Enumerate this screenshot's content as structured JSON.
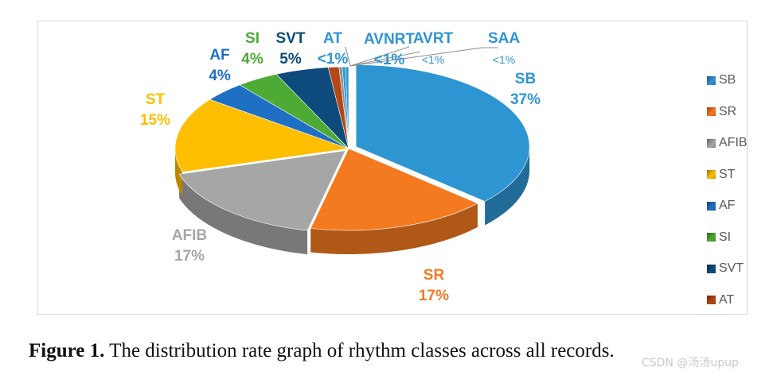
{
  "chart_data": {
    "type": "pie",
    "style": "3d-exploded",
    "categories": [
      "SB",
      "SR",
      "AFIB",
      "ST",
      "AF",
      "SI",
      "SVT",
      "AT",
      "AVNRT",
      "AVRT",
      "SAA"
    ],
    "values": [
      37,
      17,
      17,
      15,
      4,
      4,
      5,
      1,
      0.3,
      0.3,
      0.3
    ],
    "colors": [
      "#2E95D3",
      "#F47A20",
      "#A6A6A6",
      "#FFBE00",
      "#1F6FC4",
      "#4DAA35",
      "#0C4B7B",
      "#B44714",
      "#8E8E8E",
      "#2E95D3",
      "#2E95D3"
    ],
    "slices": [
      {
        "name": "SB",
        "pct_label": "37%"
      },
      {
        "name": "SR",
        "pct_label": "17%"
      },
      {
        "name": "AFIB",
        "pct_label": "17%"
      },
      {
        "name": "ST",
        "pct_label": "15%"
      },
      {
        "name": "AF",
        "pct_label": "4%"
      },
      {
        "name": "SI",
        "pct_label": "4%"
      },
      {
        "name": "SVT",
        "pct_label": "5%"
      },
      {
        "name": "AT",
        "pct_label": "<1%"
      },
      {
        "name": "AVNRT",
        "pct_label": "<1%"
      },
      {
        "name": "AVRT",
        "pct_label": "<1%"
      },
      {
        "name": "SAA",
        "pct_label": "<1%"
      }
    ],
    "legend": [
      "SB",
      "SR",
      "AFIB",
      "ST",
      "AF",
      "SI",
      "SVT",
      "AT"
    ],
    "legend_position": "right"
  },
  "caption": {
    "label": "Figure 1.",
    "text": " The distribution rate graph of rhythm classes across all records."
  },
  "watermark": "CSDN @汤汤upup"
}
